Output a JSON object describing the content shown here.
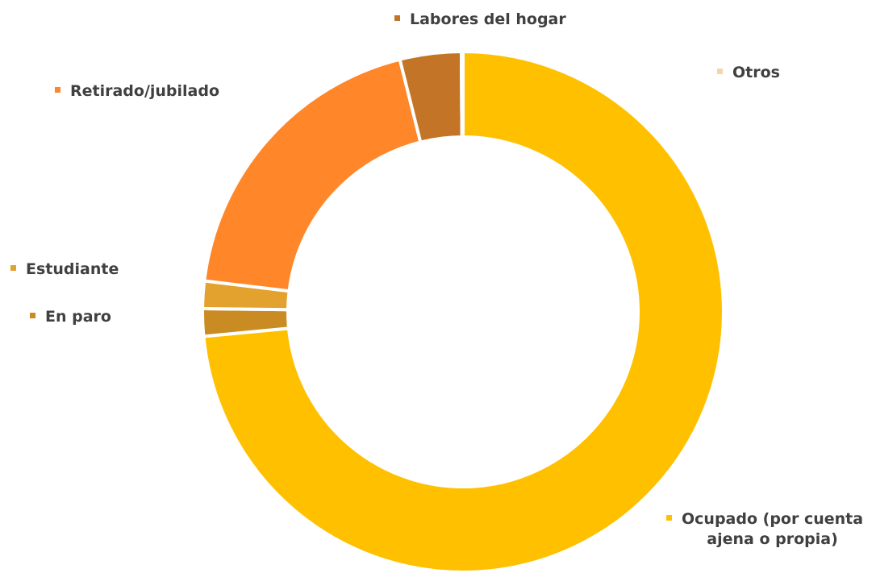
{
  "chart_data": {
    "type": "pie",
    "variant": "doughnut",
    "categories": [
      "Ocupado (por cuenta ajena o propia)",
      "En paro",
      "Estudiante",
      "Retirado/jubilado",
      "Labores del hogar",
      "Otros"
    ],
    "values": [
      73.5,
      1.7,
      1.7,
      19.2,
      3.8,
      0.1
    ],
    "unit": "%",
    "colors": [
      "#FFC000",
      "#C98B22",
      "#E3A12E",
      "#FF8629",
      "#C37426",
      "#F5D4AF"
    ],
    "labels": {
      "ocupado": [
        "Ocupado (por cuenta",
        "ajena o propia)"
      ],
      "en_paro": "En paro",
      "estudiante": "Estudiante",
      "retirado": "Retirado/jubilado",
      "labores": "Labores del hogar",
      "otros": "Otros"
    },
    "title": "",
    "legend": "none",
    "data_labels": "category names"
  }
}
